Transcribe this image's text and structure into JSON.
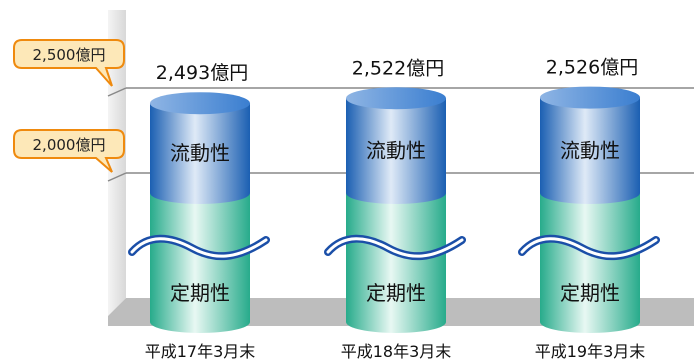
{
  "chart_data": {
    "type": "bar",
    "categories": [
      "平成17年3月末",
      "平成18年3月末",
      "平成19年3月末"
    ],
    "values": [
      2493,
      2522,
      2526
    ],
    "value_labels": [
      "2,493億円",
      "2,522億円",
      "2,526億円"
    ],
    "segment_labels": {
      "upper": "流動性",
      "lower": "定期性"
    },
    "axis_callouts": [
      {
        "value": 2500,
        "label": "2,500億円"
      },
      {
        "value": 2000,
        "label": "2,000億円"
      }
    ],
    "axis_break": true,
    "colors": {
      "upper_dark": "#1b5fb2",
      "upper_light": "#dfeaf7",
      "lower_dark": "#27ab8b",
      "lower_light": "#e8f8f3",
      "callout_fill": "#fde8b8",
      "callout_stroke": "#ef8a0e",
      "floor": "#bdbdbd",
      "wall": "#e2e2e2",
      "grid": "#888888"
    }
  }
}
